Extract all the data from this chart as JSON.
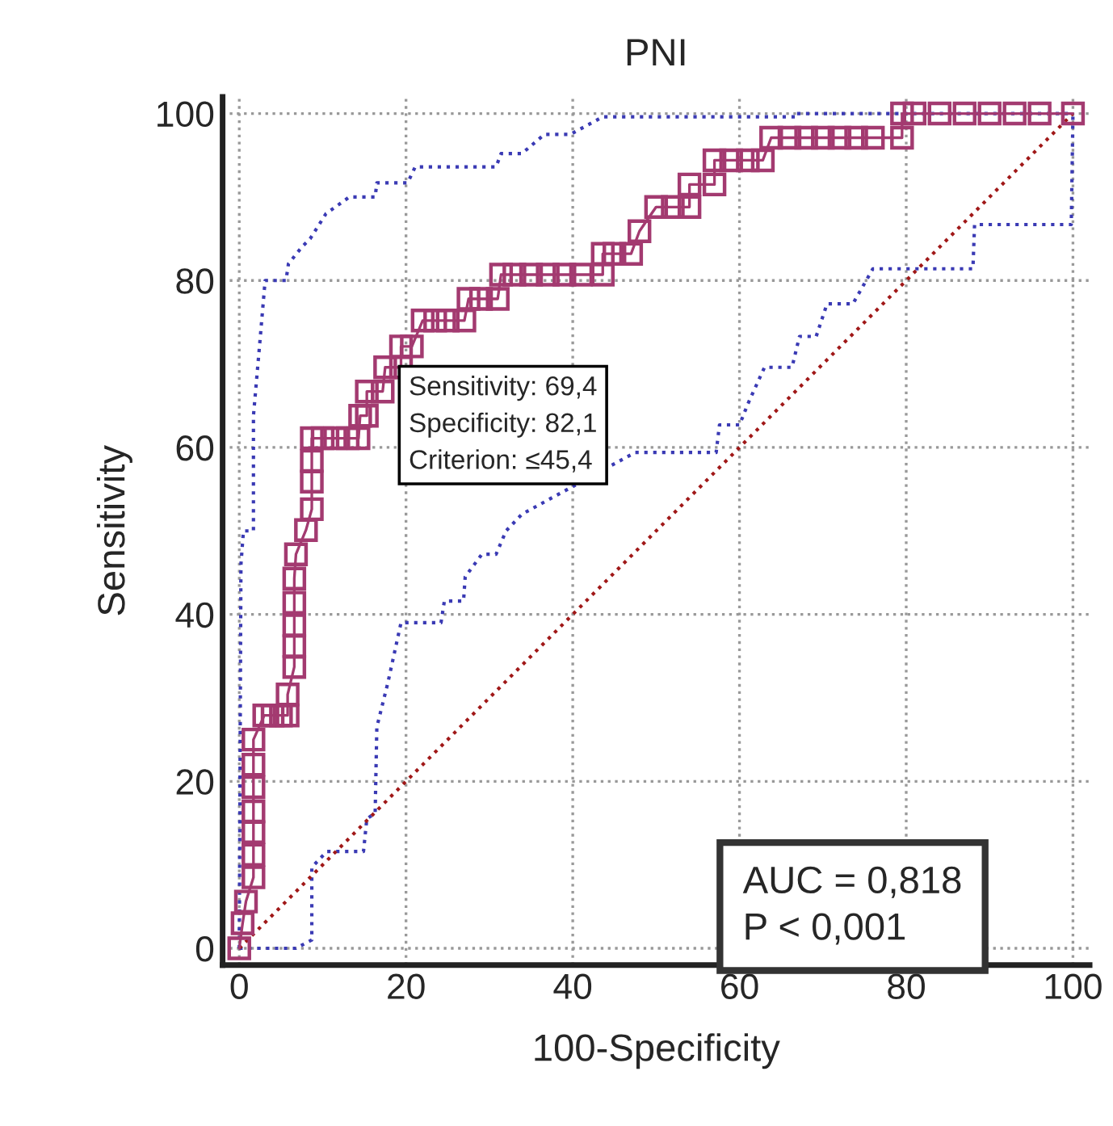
{
  "chart_data": {
    "type": "line",
    "title": "PNI",
    "xlabel": "100-Specificity",
    "ylabel": "Sensitivity",
    "xlim": [
      -2,
      102
    ],
    "ylim": [
      -2,
      102
    ],
    "xticks": [
      0,
      20,
      40,
      60,
      80,
      100
    ],
    "yticks": [
      0,
      20,
      40,
      60,
      80,
      100
    ],
    "grid": true,
    "series": [
      {
        "color": "#3a3ab4",
        "marker": "none",
        "line_style": "dotted",
        "x": [
          0,
          0.2,
          0.5,
          1.7,
          1.7,
          2.5,
          3.1,
          5.6,
          5.9,
          7.5,
          8.5,
          10.4,
          13.2,
          16.3,
          16.5,
          20.2,
          21.1,
          30.8,
          31.4,
          33.9,
          36.6,
          39.7,
          43.6,
          66.9,
          66.9,
          100
        ],
        "values": [
          0,
          46,
          50,
          50,
          63.8,
          73,
          80,
          80,
          82,
          84,
          85,
          88,
          90,
          90,
          91.7,
          91.7,
          93.6,
          93.6,
          95.2,
          95.2,
          97.5,
          97.5,
          99.6,
          99.6,
          100,
          100
        ]
      },
      {
        "color": "#3a3ab4",
        "marker": "none",
        "line_style": "dotted",
        "x": [
          0,
          6.8,
          8.7,
          8.7,
          10.5,
          14.9,
          15.3,
          16.3,
          16.5,
          17.8,
          19.4,
          24.2,
          24.6,
          26.9,
          27.1,
          29.1,
          30.8,
          32,
          33.9,
          47.5,
          57.2,
          57.6,
          60,
          61,
          63,
          66.3,
          67.2,
          69.2,
          70.5,
          73.6,
          76,
          88,
          88.2,
          99.8,
          100
        ],
        "values": [
          0,
          0,
          1,
          9.7,
          11.6,
          11.6,
          15.5,
          16.2,
          26.5,
          31.7,
          39,
          39,
          41.6,
          41.6,
          44.5,
          47.2,
          47.2,
          50,
          52,
          59.4,
          59.4,
          62.7,
          62.7,
          65.2,
          69.6,
          69.6,
          73.3,
          73.3,
          77.2,
          77.2,
          81.4,
          81.4,
          86.7,
          86.7,
          100
        ]
      },
      {
        "color": "#a01818",
        "marker": "none",
        "line_style": "dotted",
        "x": [
          0,
          100
        ],
        "values": [
          0,
          100
        ]
      },
      {
        "color": "#a33a70",
        "marker": "square",
        "line_style": "solid",
        "x": [
          0,
          0.4,
          0.8,
          1.7,
          1.7,
          1.7,
          1.7,
          1.7,
          1.7,
          1.7,
          3,
          4,
          5,
          5.8,
          5.8,
          6.6,
          6.6,
          6.6,
          6.6,
          6.6,
          6.8,
          8,
          8.7,
          8.7,
          8.7,
          8.7,
          10,
          11.5,
          13,
          14.3,
          14.5,
          15.3,
          15.3,
          17.2,
          17.5,
          19.4,
          19.4,
          20.7,
          22,
          23.5,
          25,
          27,
          27.5,
          29,
          31,
          31.4,
          33,
          35,
          37,
          39,
          41,
          43.6,
          43.6,
          45,
          47,
          48,
          50,
          52,
          54,
          54,
          57,
          57,
          59,
          61,
          62.8,
          63.8,
          66,
          68,
          70,
          72,
          74,
          76,
          79.5,
          79.5,
          81,
          84,
          87,
          90,
          93,
          96,
          100
        ],
        "values": [
          0,
          3,
          5.6,
          8.5,
          11.2,
          13.9,
          16.4,
          19.3,
          22,
          25,
          27.9,
          27.9,
          27.9,
          27.9,
          30.4,
          33.7,
          36.2,
          38.7,
          41.4,
          44.3,
          47.2,
          50.1,
          52.6,
          55.9,
          58.4,
          61.1,
          61.1,
          61.1,
          61.1,
          61.1,
          63.8,
          63.8,
          66.7,
          66.7,
          69.6,
          69.6,
          72.1,
          72.1,
          75.2,
          75.2,
          75.2,
          75.2,
          77.8,
          77.8,
          77.8,
          80.7,
          80.7,
          80.7,
          80.7,
          80.7,
          80.7,
          80.7,
          83.2,
          83.2,
          83.2,
          85.9,
          88.8,
          88.8,
          88.8,
          91.5,
          91.5,
          94.4,
          94.4,
          94.4,
          94.4,
          97.1,
          97.1,
          97.1,
          97.1,
          97.1,
          97.1,
          97.1,
          97.1,
          100,
          100,
          100,
          100,
          100,
          100,
          100,
          100
        ]
      }
    ],
    "annotations": [
      {
        "text": "Sensitivity: 69,4\nSpecificity: 82,1\nCriterion: ≤45,4",
        "x": 17.9,
        "y": 69.4
      },
      "AUC = 0,818\nP < 0,001"
    ]
  }
}
